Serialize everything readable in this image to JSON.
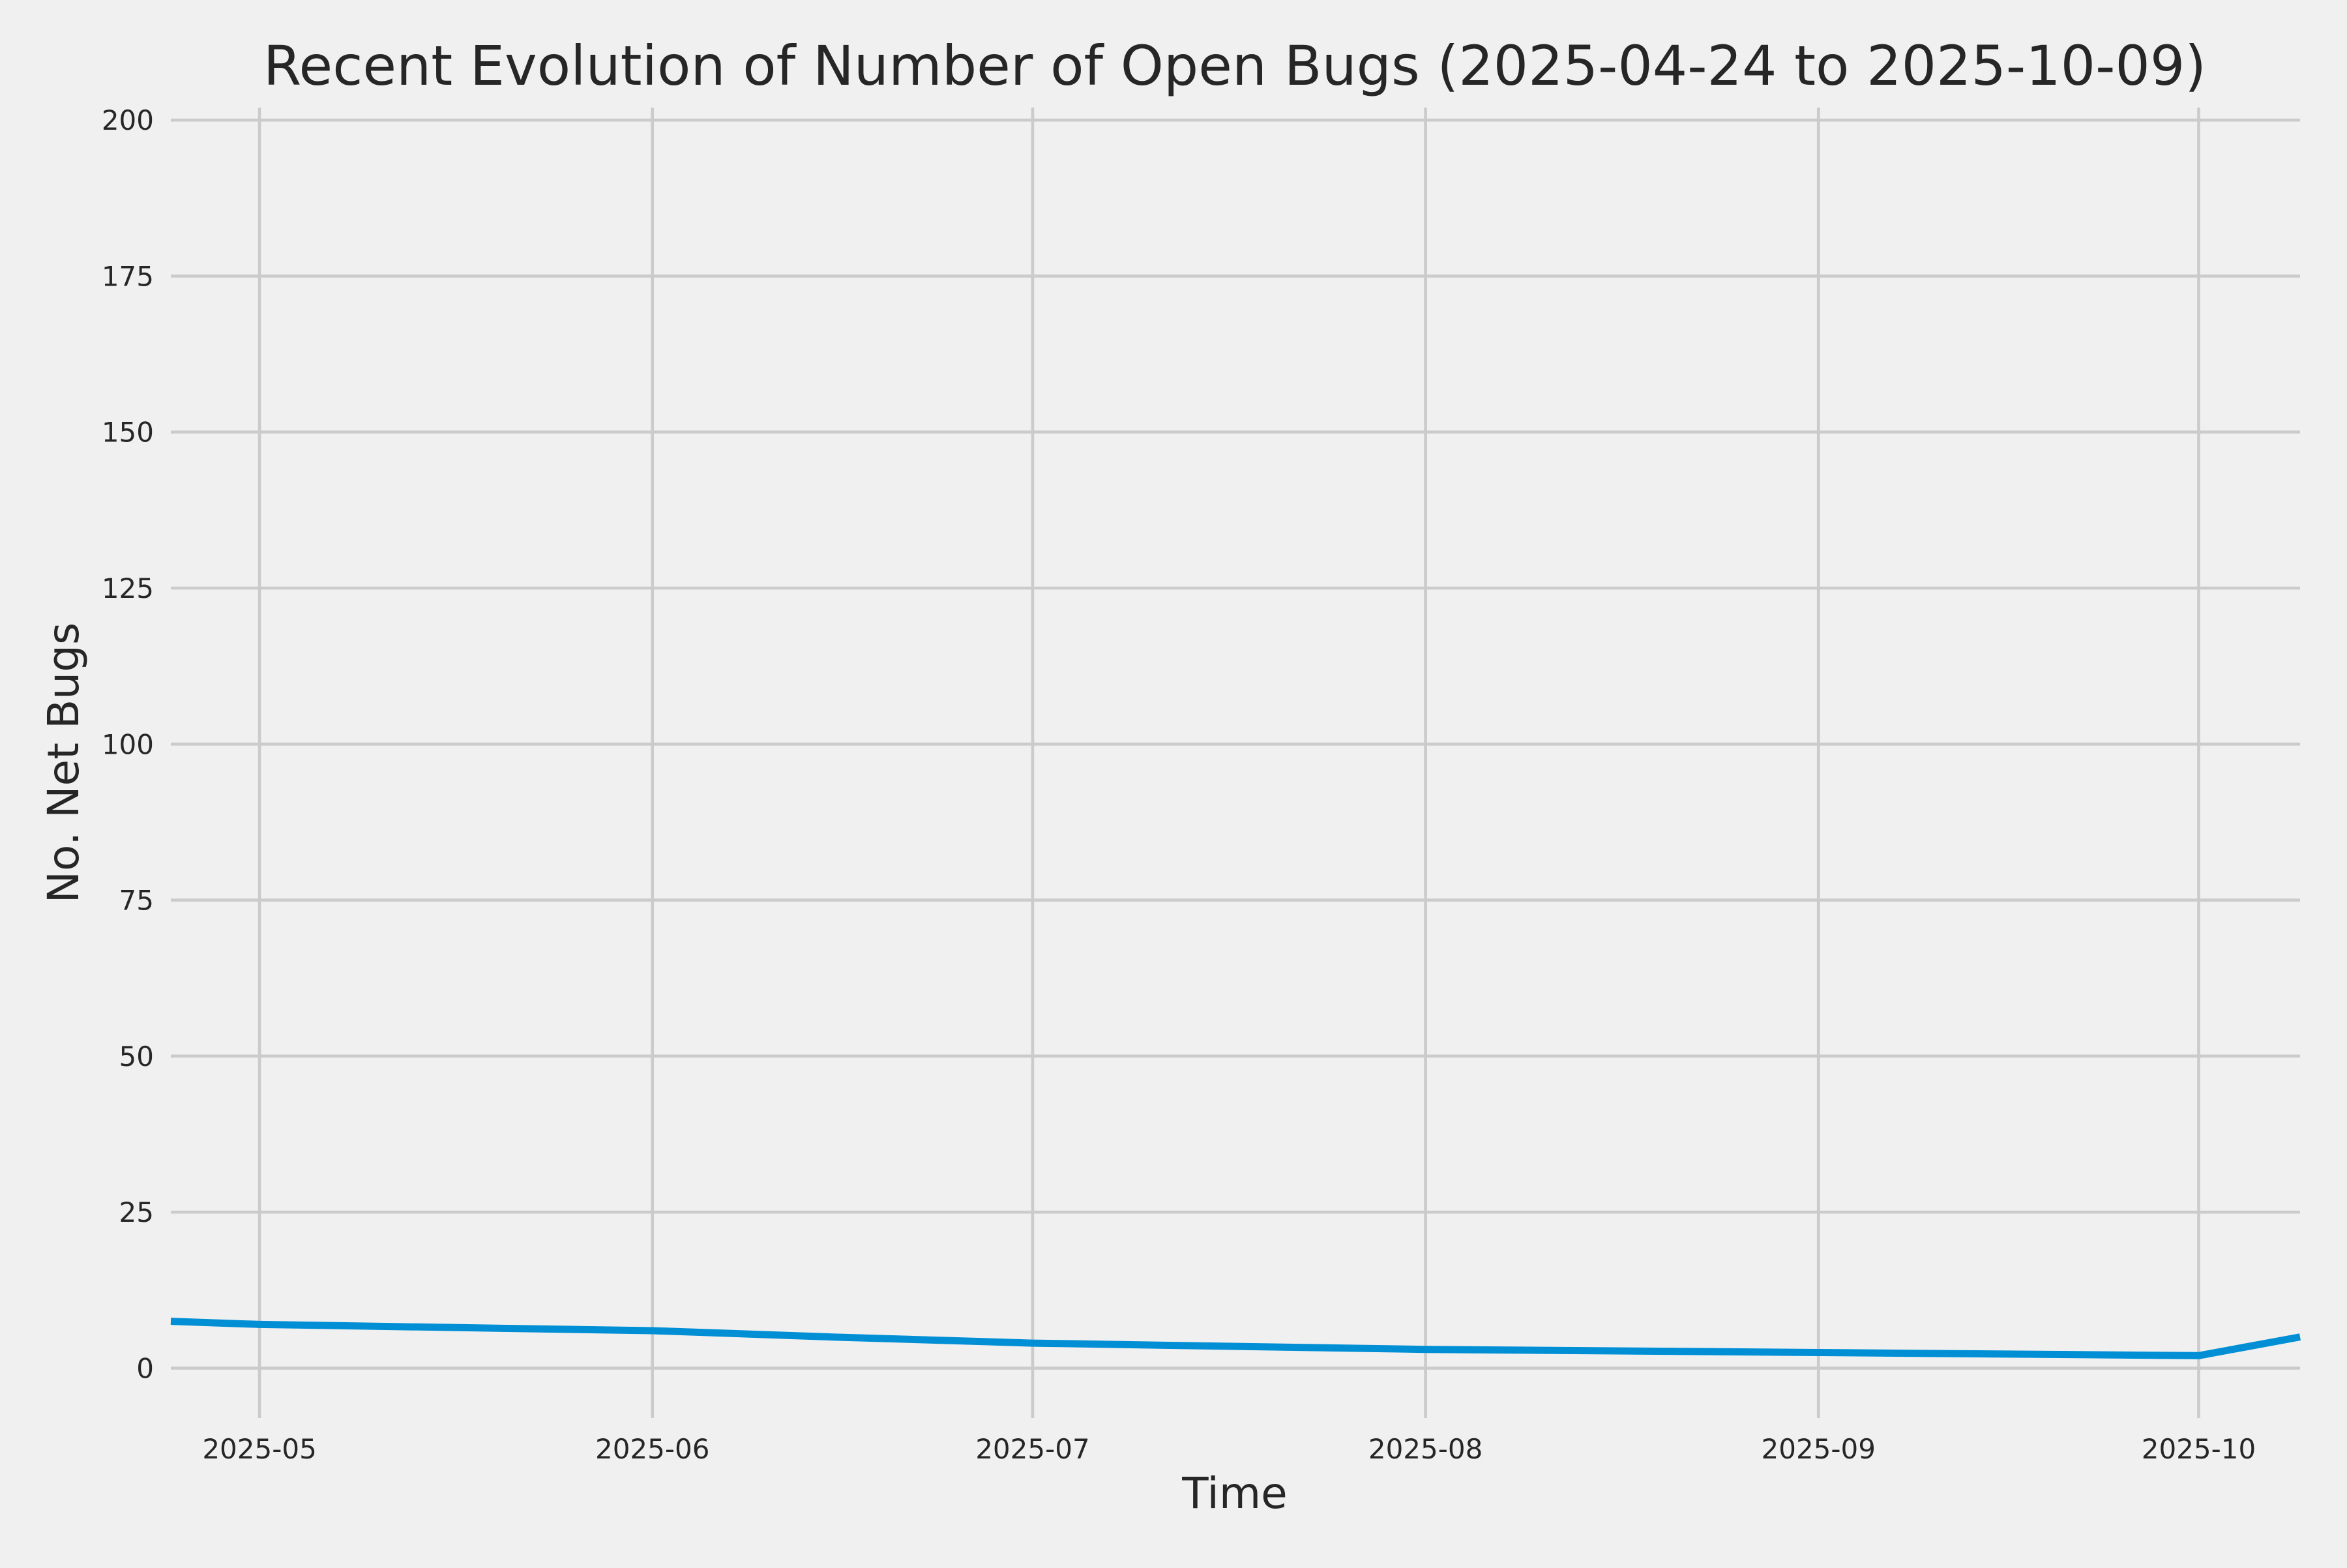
{
  "chart_data": {
    "type": "line",
    "title": "Recent Evolution of Number of Open Bugs (2025-04-24 to 2025-10-09)",
    "xlabel": "Time",
    "ylabel": "No. Net Bugs",
    "xlim": [
      "2025-04-24",
      "2025-10-09"
    ],
    "ylim": [
      -8,
      202
    ],
    "x_ticks": [
      "2025-05-01",
      "2025-06-01",
      "2025-07-01",
      "2025-08-01",
      "2025-09-01",
      "2025-10-01"
    ],
    "x_tick_labels": [
      "2025-05",
      "2025-06",
      "2025-07",
      "2025-08",
      "2025-09",
      "2025-10"
    ],
    "y_ticks": [
      0,
      25,
      50,
      75,
      100,
      125,
      150,
      175,
      200
    ],
    "y_tick_labels": [
      "0",
      "25",
      "50",
      "75",
      "100",
      "125",
      "150",
      "175",
      "200"
    ],
    "grid": true,
    "series": [
      {
        "color": "#008fd5",
        "x": [
          "2025-04-24",
          "2025-05-01",
          "2025-06-01",
          "2025-06-15",
          "2025-07-01",
          "2025-08-01",
          "2025-09-01",
          "2025-10-01",
          "2025-10-09"
        ],
        "y": [
          7.5,
          7,
          6,
          5,
          4,
          3,
          2.5,
          2,
          5
        ]
      }
    ]
  }
}
